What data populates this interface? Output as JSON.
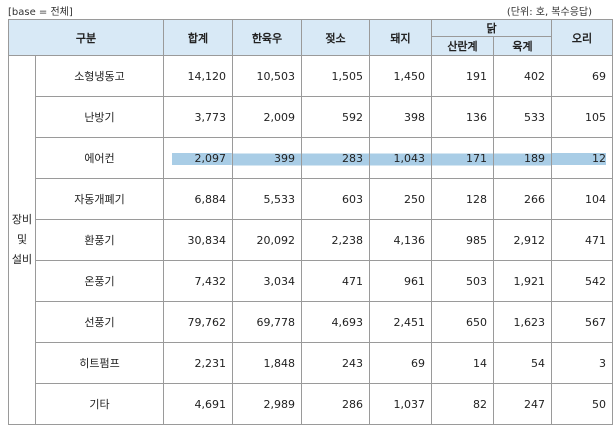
{
  "header": {
    "base_label": "[base = 전체]",
    "unit_label": "(단위: 호, 복수응답)"
  },
  "table": {
    "columns": {
      "category": "구분",
      "total": "합계",
      "hanwoo": "한육우",
      "dairy": "젖소",
      "pig": "돼지",
      "chicken": "닭",
      "layer": "산란계",
      "broiler": "육계",
      "duck": "오리"
    },
    "group_label_lines": [
      "장비",
      "및",
      "설비"
    ],
    "rows": [
      {
        "label": "소형냉동고",
        "values": [
          "14,120",
          "10,503",
          "1,505",
          "1,450",
          "191",
          "402",
          "69"
        ]
      },
      {
        "label": "난방기",
        "values": [
          "3,773",
          "2,009",
          "592",
          "398",
          "136",
          "533",
          "105"
        ]
      },
      {
        "label": "에어컨",
        "values": [
          "2,097",
          "399",
          "283",
          "1,043",
          "171",
          "189",
          "12"
        ]
      },
      {
        "label": "자동개폐기",
        "values": [
          "6,884",
          "5,533",
          "603",
          "250",
          "128",
          "266",
          "104"
        ]
      },
      {
        "label": "환풍기",
        "values": [
          "30,834",
          "20,092",
          "2,238",
          "4,136",
          "985",
          "2,912",
          "471"
        ]
      },
      {
        "label": "온풍기",
        "values": [
          "7,432",
          "3,034",
          "471",
          "961",
          "503",
          "1,921",
          "542"
        ]
      },
      {
        "label": "선풍기",
        "values": [
          "79,762",
          "69,778",
          "4,693",
          "2,451",
          "650",
          "1,623",
          "567"
        ]
      },
      {
        "label": "히트펌프",
        "values": [
          "2,231",
          "1,848",
          "243",
          "69",
          "14",
          "54",
          "3"
        ]
      },
      {
        "label": "기타",
        "values": [
          "4,691",
          "2,989",
          "286",
          "1,037",
          "82",
          "247",
          "50"
        ]
      }
    ],
    "highlight_color": "#a9cde6",
    "header_bg_color": "#d8e9f6"
  }
}
